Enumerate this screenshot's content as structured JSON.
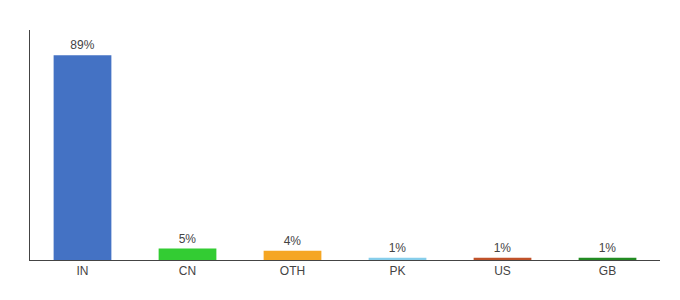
{
  "chart_data": {
    "type": "bar",
    "categories": [
      "IN",
      "CN",
      "OTH",
      "PK",
      "US",
      "GB"
    ],
    "values": [
      89,
      5,
      4,
      1,
      1,
      1
    ],
    "value_labels": [
      "89%",
      "5%",
      "4%",
      "1%",
      "1%",
      "1%"
    ],
    "colors": [
      "#4472c4",
      "#33cc33",
      "#f5a623",
      "#87ceeb",
      "#c0522a",
      "#228b22"
    ],
    "ylim": [
      0,
      100
    ],
    "data_labels": true,
    "tick_labels": "x",
    "grid": false
  }
}
